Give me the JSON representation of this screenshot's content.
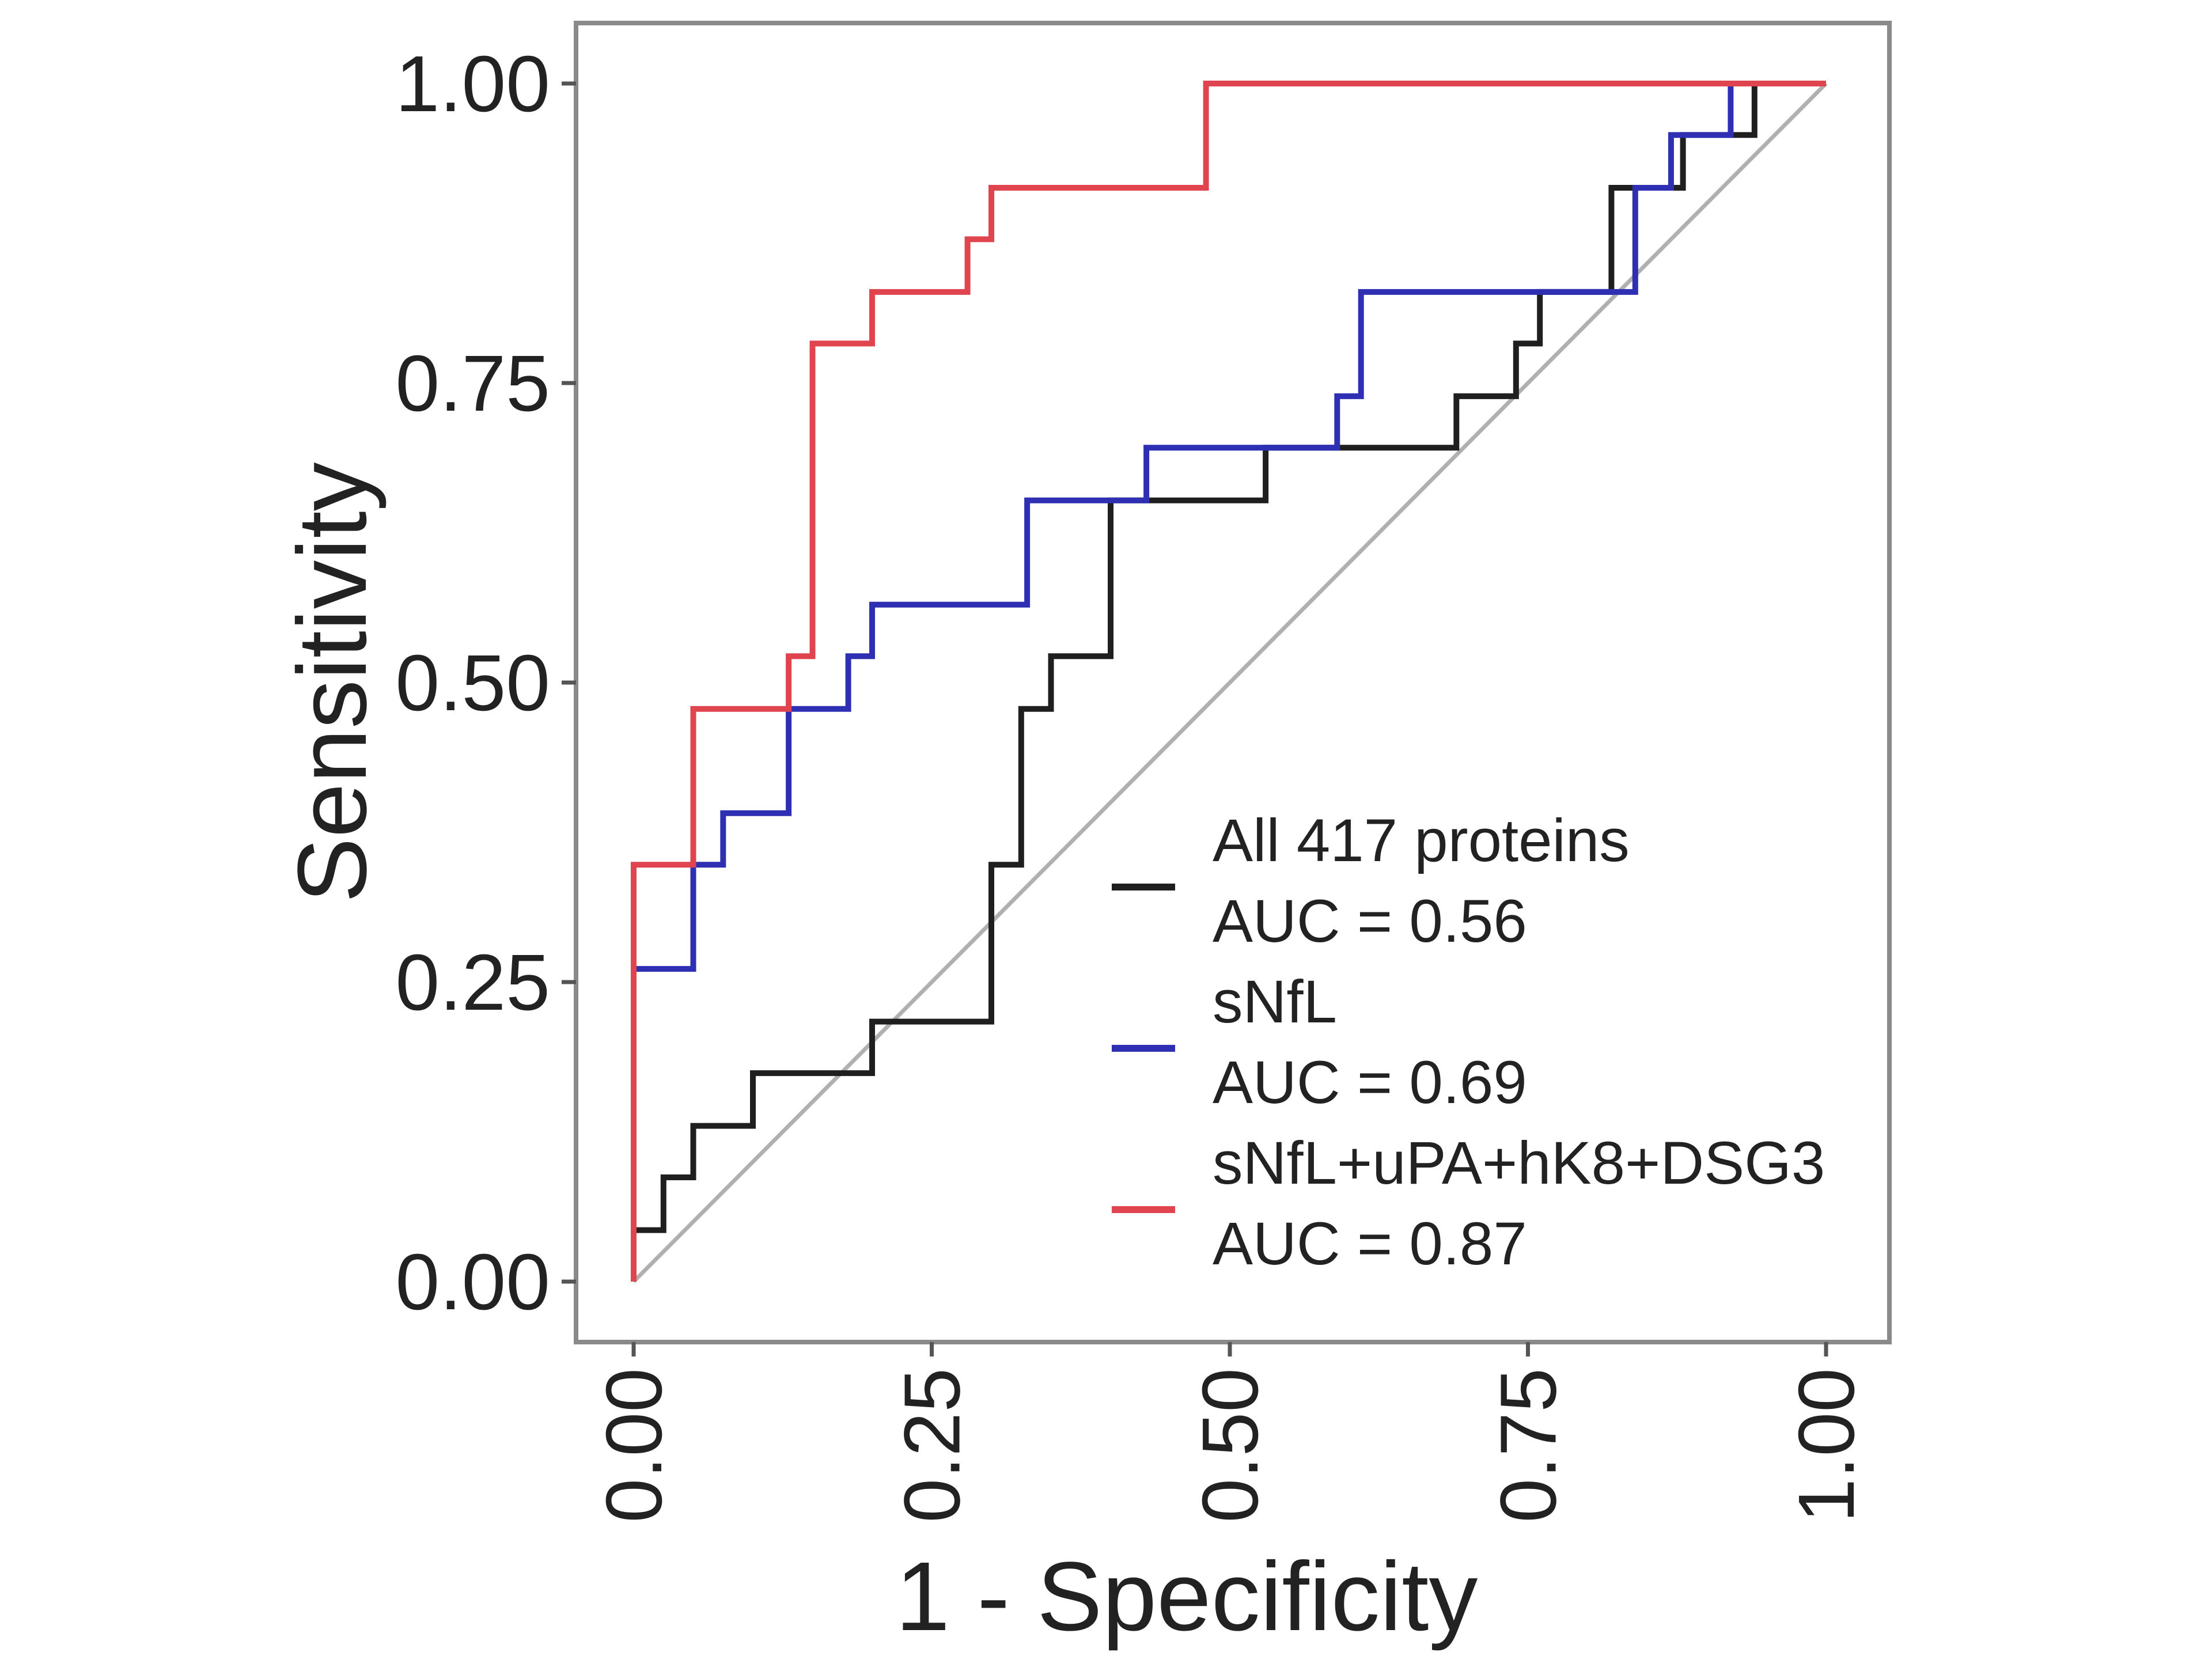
{
  "chart_data": {
    "type": "line",
    "title": "",
    "xlabel": "1 - Specificity",
    "ylabel": "Sensitivity",
    "xlim": [
      0,
      1
    ],
    "ylim": [
      0,
      1
    ],
    "x_ticks": [
      "0.00",
      "0.25",
      "0.50",
      "0.75",
      "1.00"
    ],
    "y_ticks": [
      "0.00",
      "0.25",
      "0.50",
      "0.75",
      "1.00"
    ],
    "grid": false,
    "legend_position": "bottom-right",
    "reference_line": {
      "from": [
        0,
        0
      ],
      "to": [
        1,
        1
      ],
      "color": "#b0b0b0"
    },
    "series": [
      {
        "name": "All 417 proteins",
        "auc_label": "AUC = 0.56",
        "color": "#1f1f1f",
        "points": [
          [
            0,
            0
          ],
          [
            0,
            0.043
          ],
          [
            0.025,
            0.043
          ],
          [
            0.025,
            0.087
          ],
          [
            0.05,
            0.087
          ],
          [
            0.05,
            0.13
          ],
          [
            0.1,
            0.13
          ],
          [
            0.1,
            0.174
          ],
          [
            0.2,
            0.174
          ],
          [
            0.2,
            0.217
          ],
          [
            0.3,
            0.217
          ],
          [
            0.3,
            0.348
          ],
          [
            0.325,
            0.348
          ],
          [
            0.325,
            0.478
          ],
          [
            0.35,
            0.478
          ],
          [
            0.35,
            0.522
          ],
          [
            0.4,
            0.522
          ],
          [
            0.4,
            0.652
          ],
          [
            0.53,
            0.652
          ],
          [
            0.53,
            0.696
          ],
          [
            0.69,
            0.696
          ],
          [
            0.69,
            0.739
          ],
          [
            0.74,
            0.739
          ],
          [
            0.74,
            0.783
          ],
          [
            0.76,
            0.783
          ],
          [
            0.76,
            0.826
          ],
          [
            0.82,
            0.826
          ],
          [
            0.82,
            0.913
          ],
          [
            0.88,
            0.913
          ],
          [
            0.88,
            0.957
          ],
          [
            0.94,
            0.957
          ],
          [
            0.94,
            1
          ],
          [
            1,
            1
          ]
        ]
      },
      {
        "name": "sNfL",
        "auc_label": "AUC = 0.69",
        "color": "#2f2fb4",
        "points": [
          [
            0,
            0
          ],
          [
            0,
            0.261
          ],
          [
            0.05,
            0.261
          ],
          [
            0.05,
            0.348
          ],
          [
            0.075,
            0.348
          ],
          [
            0.075,
            0.391
          ],
          [
            0.13,
            0.391
          ],
          [
            0.13,
            0.478
          ],
          [
            0.18,
            0.478
          ],
          [
            0.18,
            0.522
          ],
          [
            0.2,
            0.522
          ],
          [
            0.2,
            0.565
          ],
          [
            0.33,
            0.565
          ],
          [
            0.33,
            0.652
          ],
          [
            0.43,
            0.652
          ],
          [
            0.43,
            0.696
          ],
          [
            0.59,
            0.696
          ],
          [
            0.59,
            0.739
          ],
          [
            0.61,
            0.739
          ],
          [
            0.61,
            0.826
          ],
          [
            0.84,
            0.826
          ],
          [
            0.84,
            0.913
          ],
          [
            0.87,
            0.913
          ],
          [
            0.87,
            0.957
          ],
          [
            0.92,
            0.957
          ],
          [
            0.92,
            1
          ],
          [
            1,
            1
          ]
        ]
      },
      {
        "name": "sNfL+uPA+hK8+DSG3",
        "auc_label": "AUC = 0.87",
        "color": "#e0454f",
        "points": [
          [
            0,
            0
          ],
          [
            0,
            0.348
          ],
          [
            0.05,
            0.348
          ],
          [
            0.05,
            0.478
          ],
          [
            0.13,
            0.478
          ],
          [
            0.13,
            0.522
          ],
          [
            0.15,
            0.522
          ],
          [
            0.15,
            0.783
          ],
          [
            0.2,
            0.783
          ],
          [
            0.2,
            0.826
          ],
          [
            0.28,
            0.826
          ],
          [
            0.28,
            0.87
          ],
          [
            0.3,
            0.87
          ],
          [
            0.3,
            0.913
          ],
          [
            0.48,
            0.913
          ],
          [
            0.48,
            1
          ],
          [
            1,
            1
          ]
        ]
      }
    ]
  }
}
